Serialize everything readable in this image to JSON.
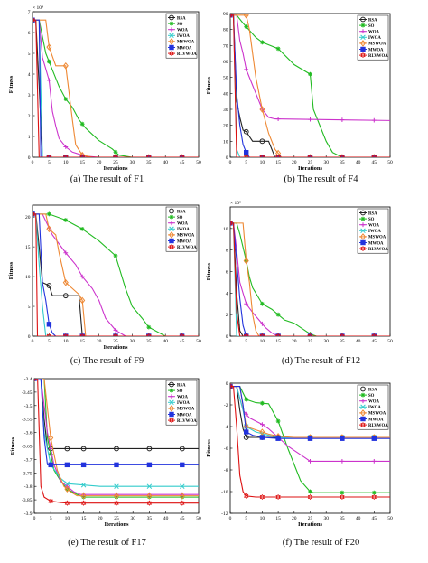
{
  "legend_labels": [
    "RSA",
    "SO",
    "WOA",
    "IWOA",
    "MSWOA",
    "MWOA",
    "RLVWOA"
  ],
  "series_colors": [
    "#222222",
    "#22bb22",
    "#cc33cc",
    "#33cccc",
    "#ee8833",
    "#2233dd",
    "#dd1111"
  ],
  "series_markers": [
    "circle",
    "star",
    "plus",
    "cross",
    "diamond",
    "square",
    "star6"
  ],
  "chart_data": [
    {
      "type": "line",
      "caption": "(a) The result of F1",
      "xlabel": "Iterations",
      "ylabel": "Fitness",
      "xlim": [
        0,
        50
      ],
      "ylim": [
        0,
        7
      ],
      "y_exponent": "× 10⁴",
      "xticks": [
        0,
        5,
        10,
        15,
        20,
        25,
        30,
        35,
        40,
        45,
        50
      ],
      "yticks": [
        0,
        1,
        2,
        3,
        4,
        5,
        6,
        7
      ],
      "legend": "top-right",
      "series": [
        {
          "name": "RSA",
          "x": [
            0,
            1,
            2,
            3,
            50
          ],
          "y": [
            6.6,
            6.6,
            3.4,
            0.0,
            0.0
          ]
        },
        {
          "name": "SO",
          "x": [
            0,
            2,
            4,
            6,
            8,
            10,
            12,
            14,
            16,
            18,
            20,
            22,
            24,
            26,
            30,
            50
          ],
          "y": [
            6.6,
            6.6,
            5.0,
            4.2,
            3.4,
            2.8,
            2.4,
            1.8,
            1.4,
            1.1,
            0.8,
            0.6,
            0.4,
            0.1,
            0.0,
            0.0
          ]
        },
        {
          "name": "WOA",
          "x": [
            0,
            2,
            3,
            5,
            6,
            7,
            8,
            10,
            12,
            14,
            16,
            20,
            50
          ],
          "y": [
            6.6,
            6.6,
            4.8,
            3.7,
            2.2,
            1.5,
            0.9,
            0.5,
            0.25,
            0.15,
            0.05,
            0.0,
            0.0
          ]
        },
        {
          "name": "IWOA",
          "x": [
            0,
            2,
            3,
            50
          ],
          "y": [
            6.6,
            6.6,
            0.0,
            0.0
          ]
        },
        {
          "name": "MSWOA",
          "x": [
            0,
            4,
            5,
            7,
            8,
            10,
            12,
            13,
            15,
            18,
            50
          ],
          "y": [
            6.6,
            6.6,
            5.3,
            4.4,
            4.4,
            4.4,
            1.8,
            0.6,
            0.1,
            0.0,
            0.0
          ]
        },
        {
          "name": "MWOA",
          "x": [
            0,
            2,
            2.5,
            50
          ],
          "y": [
            6.6,
            6.6,
            0.0,
            0.0
          ]
        },
        {
          "name": "RLVWOA",
          "x": [
            0,
            1,
            2,
            50
          ],
          "y": [
            6.6,
            6.6,
            0.0,
            0.0
          ]
        }
      ]
    },
    {
      "type": "line",
      "caption": "(b) The result of F4",
      "xlabel": "Iterations",
      "ylabel": "Fitness",
      "xlim": [
        0,
        50
      ],
      "ylim": [
        0,
        90
      ],
      "y_exponent": "",
      "xticks": [
        0,
        5,
        10,
        15,
        20,
        25,
        30,
        35,
        40,
        45,
        50
      ],
      "yticks": [
        0,
        10,
        20,
        30,
        40,
        50,
        60,
        70,
        80,
        90
      ],
      "legend": "top-right",
      "series": [
        {
          "name": "RSA",
          "x": [
            0,
            1,
            2,
            3,
            4,
            5,
            6,
            7,
            8,
            10,
            12,
            14,
            50
          ],
          "y": [
            89,
            89,
            35,
            25,
            17,
            16,
            13,
            10,
            10,
            10,
            10,
            0,
            0
          ]
        },
        {
          "name": "SO",
          "x": [
            0,
            2,
            4,
            8,
            10,
            15,
            20,
            25,
            26,
            30,
            32,
            35,
            50
          ],
          "y": [
            89,
            89,
            84,
            75,
            72,
            68,
            58,
            52,
            30,
            10,
            3,
            0,
            0
          ]
        },
        {
          "name": "WOA",
          "x": [
            0,
            2,
            3,
            4,
            5,
            7,
            8,
            10,
            12,
            14,
            50
          ],
          "y": [
            89,
            89,
            73,
            65,
            55,
            45,
            40,
            30,
            25,
            24,
            23
          ]
        },
        {
          "name": "IWOA",
          "x": [
            0,
            1,
            2,
            3,
            50
          ],
          "y": [
            89,
            89,
            5,
            0,
            0
          ]
        },
        {
          "name": "MSWOA",
          "x": [
            0,
            5,
            6,
            8,
            10,
            12,
            14,
            16,
            50
          ],
          "y": [
            89,
            89,
            80,
            50,
            30,
            15,
            5,
            0,
            0
          ]
        },
        {
          "name": "MWOA",
          "x": [
            0,
            1,
            2,
            3,
            4,
            5,
            6,
            50
          ],
          "y": [
            89,
            89,
            40,
            20,
            8,
            3,
            0,
            0
          ]
        },
        {
          "name": "RLVWOA",
          "x": [
            0,
            1,
            2,
            50
          ],
          "y": [
            89,
            89,
            0,
            0
          ]
        }
      ]
    },
    {
      "type": "line",
      "caption": "(c) The result of F9",
      "xlabel": "Iterations",
      "ylabel": "Fitness",
      "xlim": [
        0,
        50
      ],
      "ylim": [
        0,
        22
      ],
      "y_exponent": "",
      "xticks": [
        0,
        5,
        10,
        15,
        20,
        25,
        30,
        35,
        40,
        45,
        50
      ],
      "yticks": [
        0,
        5,
        10,
        15,
        20
      ],
      "legend": "top-right",
      "series": [
        {
          "name": "RSA",
          "x": [
            0,
            1,
            2,
            3,
            5,
            6,
            10,
            14,
            15,
            50
          ],
          "y": [
            20.5,
            20.5,
            15,
            9,
            8.5,
            6.8,
            6.8,
            6.8,
            0,
            0
          ]
        },
        {
          "name": "SO",
          "x": [
            0,
            5,
            10,
            15,
            20,
            25,
            28,
            30,
            33,
            35,
            40,
            50
          ],
          "y": [
            20.5,
            20.5,
            19.5,
            18,
            16,
            13.5,
            8,
            5,
            3,
            1.5,
            0,
            0
          ]
        },
        {
          "name": "WOA",
          "x": [
            0,
            3,
            6,
            10,
            13,
            15,
            18,
            20,
            22,
            25,
            28,
            50
          ],
          "y": [
            20.5,
            20.5,
            17,
            14,
            12,
            10,
            8,
            6,
            3,
            1,
            0,
            0
          ]
        },
        {
          "name": "IWOA",
          "x": [
            0,
            1,
            2,
            3,
            4,
            50
          ],
          "y": [
            20.5,
            20.5,
            12,
            5,
            0,
            0
          ]
        },
        {
          "name": "MSWOA",
          "x": [
            0,
            4,
            5,
            7,
            8,
            10,
            12,
            14,
            15,
            16,
            50
          ],
          "y": [
            20.5,
            20.5,
            18,
            17,
            14,
            9,
            8,
            7,
            6,
            0,
            0
          ]
        },
        {
          "name": "MWOA",
          "x": [
            0,
            2,
            3,
            4,
            5,
            6,
            7,
            50
          ],
          "y": [
            20.5,
            20.5,
            9,
            6,
            2,
            0.5,
            0,
            0
          ]
        },
        {
          "name": "RLVWOA",
          "x": [
            0,
            1,
            1.5,
            50
          ],
          "y": [
            20.5,
            20.5,
            0,
            0
          ]
        }
      ]
    },
    {
      "type": "line",
      "caption": "(d) The result of F12",
      "xlabel": "",
      "ylabel": "Fitness",
      "xlim": [
        0,
        50
      ],
      "ylim": [
        0,
        12
      ],
      "y_exponent": "× 10⁸",
      "xticks": [
        0,
        5,
        10,
        15,
        20,
        25,
        30,
        35,
        40,
        45,
        50
      ],
      "yticks": [
        0,
        2,
        4,
        6,
        8,
        10
      ],
      "legend": "top-right",
      "series": [
        {
          "name": "RSA",
          "x": [
            0,
            1,
            2,
            3,
            4,
            50
          ],
          "y": [
            10.5,
            10.5,
            4,
            0.5,
            0,
            0
          ]
        },
        {
          "name": "SO",
          "x": [
            0,
            2,
            3,
            5,
            6,
            7,
            10,
            13,
            15,
            17,
            20,
            23,
            25,
            27,
            50
          ],
          "y": [
            10.5,
            10.5,
            9.5,
            7,
            5.5,
            4.5,
            3,
            2.5,
            2,
            1.5,
            1.2,
            0.6,
            0.2,
            0,
            0
          ]
        },
        {
          "name": "WOA",
          "x": [
            0,
            1,
            2,
            3,
            5,
            7,
            9,
            11,
            13,
            15,
            50
          ],
          "y": [
            10.5,
            10.5,
            8,
            5,
            3,
            2.2,
            1.5,
            0.8,
            0.3,
            0,
            0
          ]
        },
        {
          "name": "IWOA",
          "x": [
            0,
            1,
            2,
            50
          ],
          "y": [
            10.5,
            10.5,
            0,
            0
          ]
        },
        {
          "name": "MSWOA",
          "x": [
            0,
            3,
            4,
            5,
            6,
            7,
            8,
            9,
            50
          ],
          "y": [
            10.5,
            10.5,
            10.5,
            7,
            5,
            2,
            0.5,
            0,
            0
          ]
        },
        {
          "name": "MWOA",
          "x": [
            0,
            1,
            2,
            3,
            4,
            5,
            50
          ],
          "y": [
            10.5,
            10.5,
            7,
            3.5,
            1,
            0,
            0
          ]
        },
        {
          "name": "RLVWOA",
          "x": [
            0,
            1,
            2,
            3,
            50
          ],
          "y": [
            10.5,
            10.5,
            2.2,
            0,
            0
          ]
        }
      ]
    },
    {
      "type": "line",
      "caption": "(e) The result of F17",
      "xlabel": "Iterations",
      "ylabel": "Fitness",
      "xlim": [
        0,
        50
      ],
      "ylim": [
        -3.9,
        -3.4
      ],
      "y_exponent": "",
      "xticks": [
        0,
        5,
        10,
        15,
        20,
        25,
        30,
        35,
        40,
        45,
        50
      ],
      "yticks": [
        -3.4,
        -3.45,
        -3.5,
        -3.55,
        -3.6,
        -3.65,
        -3.7,
        -3.75,
        -3.8,
        -3.85,
        -3.9
      ],
      "legend": "top-right",
      "series": [
        {
          "name": "RSA",
          "x": [
            0,
            2,
            3,
            4,
            50
          ],
          "y": [
            -3.4,
            -3.4,
            -3.55,
            -3.66,
            -3.66
          ]
        },
        {
          "name": "SO",
          "x": [
            0,
            3,
            4,
            6,
            8,
            10,
            13,
            15,
            50
          ],
          "y": [
            -3.4,
            -3.4,
            -3.62,
            -3.74,
            -3.78,
            -3.81,
            -3.83,
            -3.84,
            -3.84
          ]
        },
        {
          "name": "WOA",
          "x": [
            0,
            2,
            4,
            6,
            8,
            10,
            12,
            14,
            16,
            50
          ],
          "y": [
            -3.4,
            -3.4,
            -3.6,
            -3.72,
            -3.78,
            -3.8,
            -3.82,
            -3.83,
            -3.83,
            -3.83
          ]
        },
        {
          "name": "IWOA",
          "x": [
            0,
            2,
            3,
            5,
            8,
            10,
            15,
            20,
            50
          ],
          "y": [
            -3.4,
            -3.4,
            -3.6,
            -3.72,
            -3.77,
            -3.79,
            -3.795,
            -3.8,
            -3.8
          ]
        },
        {
          "name": "MSWOA",
          "x": [
            0,
            3,
            5,
            7,
            9,
            11,
            13,
            50
          ],
          "y": [
            -3.4,
            -3.4,
            -3.62,
            -3.74,
            -3.8,
            -3.82,
            -3.835,
            -3.835
          ]
        },
        {
          "name": "MWOA",
          "x": [
            0,
            2,
            3,
            4,
            50
          ],
          "y": [
            -3.4,
            -3.4,
            -3.62,
            -3.72,
            -3.72
          ]
        },
        {
          "name": "RLVWOA",
          "x": [
            0,
            1,
            2,
            3,
            5,
            8,
            10,
            50
          ],
          "y": [
            -3.4,
            -3.4,
            -3.8,
            -3.84,
            -3.855,
            -3.86,
            -3.862,
            -3.862
          ]
        }
      ]
    },
    {
      "type": "line",
      "caption": "(f) The result of F20",
      "xlabel": "Iterations",
      "ylabel": "Fitness",
      "xlim": [
        0,
        50
      ],
      "ylim": [
        -12,
        0
      ],
      "y_exponent": "",
      "xticks": [
        0,
        5,
        10,
        15,
        20,
        25,
        30,
        35,
        40,
        45,
        50
      ],
      "yticks": [
        0,
        -2,
        -4,
        -6,
        -8,
        -10,
        -12
      ],
      "legend": "top-right",
      "series": [
        {
          "name": "RSA",
          "x": [
            0,
            2,
            3,
            4,
            5,
            50
          ],
          "y": [
            -0.3,
            -0.3,
            -2.5,
            -4.2,
            -5.0,
            -5.0
          ]
        },
        {
          "name": "SO",
          "x": [
            0,
            3,
            5,
            8,
            12,
            15,
            18,
            20,
            22,
            25,
            26,
            50
          ],
          "y": [
            -0.3,
            -0.3,
            -1.5,
            -1.8,
            -1.9,
            -3.5,
            -6.0,
            -7.5,
            -9.0,
            -10.0,
            -10.1,
            -10.1
          ]
        },
        {
          "name": "WOA",
          "x": [
            0,
            2,
            4,
            6,
            8,
            10,
            12,
            15,
            18,
            20,
            23,
            25,
            50
          ],
          "y": [
            -0.3,
            -0.3,
            -2.5,
            -3.2,
            -3.5,
            -3.8,
            -4.2,
            -5.0,
            -5.8,
            -6.2,
            -6.8,
            -7.2,
            -7.2
          ]
        },
        {
          "name": "IWOA",
          "x": [
            0,
            2,
            4,
            5,
            8,
            12,
            15,
            20,
            50
          ],
          "y": [
            -0.3,
            -0.3,
            -2.5,
            -4.0,
            -4.5,
            -4.8,
            -5.0,
            -5.0,
            -5.0
          ]
        },
        {
          "name": "MSWOA",
          "x": [
            0,
            3,
            5,
            8,
            12,
            15,
            20,
            25,
            50
          ],
          "y": [
            -0.3,
            -0.3,
            -4.0,
            -4.3,
            -4.7,
            -4.9,
            -5.0,
            -5.0,
            -5.0
          ]
        },
        {
          "name": "MWOA",
          "x": [
            0,
            3,
            4,
            5,
            7,
            10,
            15,
            50
          ],
          "y": [
            -0.3,
            -0.3,
            -2.0,
            -4.5,
            -4.8,
            -5.0,
            -5.1,
            -5.1
          ]
        },
        {
          "name": "RLVWOA",
          "x": [
            0,
            1,
            2,
            3,
            4,
            5,
            8,
            50
          ],
          "y": [
            -0.3,
            -0.3,
            -4.0,
            -8.5,
            -10.0,
            -10.4,
            -10.5,
            -10.5
          ]
        }
      ]
    }
  ]
}
